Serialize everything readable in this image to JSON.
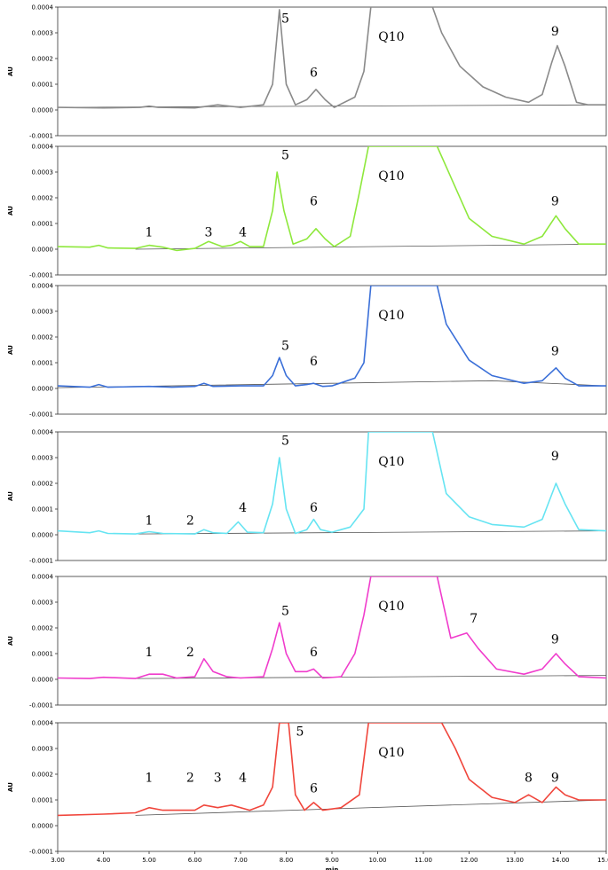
{
  "chart_data": {
    "type": "line",
    "xlabel": "min",
    "ylabel": "AU",
    "xlim": [
      3.0,
      15.0
    ],
    "ylim": [
      -0.0001,
      0.0004
    ],
    "x_ticks": [
      "3.00",
      "4.00",
      "5.00",
      "6.00",
      "7.00",
      "8.00",
      "9.00",
      "10.00",
      "11.00",
      "12.00",
      "13.00",
      "14.00",
      "15.00"
    ],
    "y_ticks": [
      "-0.0001",
      "0.0000",
      "0.0001",
      "0.0002",
      "0.0003",
      "0.0004"
    ],
    "panels": [
      {
        "color": "#8a8a8a",
        "q10_label": "Q10",
        "baseline": [
          [
            3.0,
            1e-05
          ],
          [
            15.0,
            2e-05
          ]
        ],
        "trace": [
          [
            3.0,
            1e-05
          ],
          [
            4.0,
            8e-06
          ],
          [
            4.8,
            1e-05
          ],
          [
            5.0,
            1.5e-05
          ],
          [
            5.2,
            1e-05
          ],
          [
            6.0,
            8e-06
          ],
          [
            6.5,
            2e-05
          ],
          [
            7.0,
            1e-05
          ],
          [
            7.5,
            2e-05
          ],
          [
            7.7,
            0.0001
          ],
          [
            7.85,
            0.00039
          ],
          [
            8.0,
            0.0001
          ],
          [
            8.2,
            2e-05
          ],
          [
            8.45,
            4e-05
          ],
          [
            8.65,
            8e-05
          ],
          [
            8.85,
            4e-05
          ],
          [
            9.05,
            1e-05
          ],
          [
            9.5,
            5e-05
          ],
          [
            9.7,
            0.00015
          ],
          [
            9.85,
            0.0004
          ],
          [
            11.2,
            0.0004
          ],
          [
            11.4,
            0.0003
          ],
          [
            11.8,
            0.00017
          ],
          [
            12.3,
            9e-05
          ],
          [
            12.8,
            5e-05
          ],
          [
            13.3,
            3e-05
          ],
          [
            13.6,
            6e-05
          ],
          [
            13.8,
            0.00018
          ],
          [
            13.93,
            0.00025
          ],
          [
            14.1,
            0.00017
          ],
          [
            14.35,
            3e-05
          ],
          [
            14.6,
            2e-05
          ],
          [
            15.0,
            2e-05
          ]
        ],
        "peaks": [
          {
            "label": "5",
            "x": 7.98,
            "y": 0.00034
          },
          {
            "label": "6",
            "x": 8.6,
            "y": 0.00013
          },
          {
            "label": "9",
            "x": 13.88,
            "y": 0.00029
          }
        ]
      },
      {
        "color": "#8ee83c",
        "q10_label": "Q10",
        "baseline": [
          [
            4.7,
            0.0
          ],
          [
            15.0,
            2e-05
          ]
        ],
        "trace": [
          [
            3.0,
            1e-05
          ],
          [
            3.7,
            8e-06
          ],
          [
            3.9,
            1.5e-05
          ],
          [
            4.1,
            5e-06
          ],
          [
            4.7,
            3e-06
          ],
          [
            5.0,
            1.5e-05
          ],
          [
            5.3,
            8e-06
          ],
          [
            5.6,
            -5e-06
          ],
          [
            6.0,
            3e-06
          ],
          [
            6.3,
            3e-05
          ],
          [
            6.6,
            1e-05
          ],
          [
            6.8,
            1.5e-05
          ],
          [
            7.0,
            3e-05
          ],
          [
            7.2,
            1e-05
          ],
          [
            7.5,
            1e-05
          ],
          [
            7.7,
            0.00015
          ],
          [
            7.8,
            0.0003
          ],
          [
            7.95,
            0.00015
          ],
          [
            8.15,
            2e-05
          ],
          [
            8.45,
            4e-05
          ],
          [
            8.65,
            8e-05
          ],
          [
            8.85,
            4e-05
          ],
          [
            9.05,
            1e-05
          ],
          [
            9.4,
            5e-05
          ],
          [
            9.6,
            0.00022
          ],
          [
            9.8,
            0.0004
          ],
          [
            11.3,
            0.0004
          ],
          [
            11.5,
            0.00032
          ],
          [
            12.0,
            0.00012
          ],
          [
            12.5,
            5e-05
          ],
          [
            13.2,
            2e-05
          ],
          [
            13.6,
            5e-05
          ],
          [
            13.9,
            0.00013
          ],
          [
            14.1,
            8e-05
          ],
          [
            14.4,
            2e-05
          ],
          [
            15.0,
            2e-05
          ]
        ],
        "peaks": [
          {
            "label": "1",
            "x": 5.0,
            "y": 5e-05
          },
          {
            "label": "3",
            "x": 6.3,
            "y": 5e-05
          },
          {
            "label": "4",
            "x": 7.05,
            "y": 5e-05
          },
          {
            "label": "5",
            "x": 7.98,
            "y": 0.00035
          },
          {
            "label": "6",
            "x": 8.6,
            "y": 0.00017
          },
          {
            "label": "9",
            "x": 13.88,
            "y": 0.00017
          }
        ]
      },
      {
        "color": "#3a6fd8",
        "q10_label": "Q10",
        "baseline": [
          [
            3.0,
            3e-06
          ],
          [
            12.5,
            3e-05
          ],
          [
            15.0,
            1e-05
          ]
        ],
        "trace": [
          [
            3.0,
            1e-05
          ],
          [
            3.7,
            5e-06
          ],
          [
            3.9,
            1.5e-05
          ],
          [
            4.1,
            5e-06
          ],
          [
            5.0,
            8e-06
          ],
          [
            5.5,
            5e-06
          ],
          [
            6.0,
            8e-06
          ],
          [
            6.2,
            2e-05
          ],
          [
            6.4,
            8e-06
          ],
          [
            7.0,
            1e-05
          ],
          [
            7.5,
            1e-05
          ],
          [
            7.7,
            5e-05
          ],
          [
            7.85,
            0.00012
          ],
          [
            8.0,
            5e-05
          ],
          [
            8.2,
            1e-05
          ],
          [
            8.45,
            1.5e-05
          ],
          [
            8.6,
            2e-05
          ],
          [
            8.8,
            8e-06
          ],
          [
            9.0,
            1e-05
          ],
          [
            9.5,
            4e-05
          ],
          [
            9.7,
            0.0001
          ],
          [
            9.85,
            0.0004
          ],
          [
            11.3,
            0.0004
          ],
          [
            11.5,
            0.00025
          ],
          [
            12.0,
            0.00011
          ],
          [
            12.5,
            5e-05
          ],
          [
            13.2,
            2e-05
          ],
          [
            13.6,
            3e-05
          ],
          [
            13.9,
            8e-05
          ],
          [
            14.1,
            4e-05
          ],
          [
            14.4,
            1e-05
          ],
          [
            15.0,
            1e-05
          ]
        ],
        "peaks": [
          {
            "label": "5",
            "x": 7.98,
            "y": 0.00015
          },
          {
            "label": "6",
            "x": 8.6,
            "y": 9e-05
          },
          {
            "label": "9",
            "x": 13.88,
            "y": 0.00013
          }
        ]
      },
      {
        "color": "#66e4f2",
        "q10_label": "Q10",
        "baseline": [
          [
            4.7,
            3e-06
          ],
          [
            15.0,
            1.5e-05
          ]
        ],
        "trace": [
          [
            3.0,
            1.5e-05
          ],
          [
            3.7,
            8e-06
          ],
          [
            3.9,
            1.5e-05
          ],
          [
            4.1,
            5e-06
          ],
          [
            4.7,
            3e-06
          ],
          [
            5.0,
            1.2e-05
          ],
          [
            5.3,
            5e-06
          ],
          [
            6.0,
            3e-06
          ],
          [
            6.2,
            2e-05
          ],
          [
            6.4,
            8e-06
          ],
          [
            6.7,
            5e-06
          ],
          [
            6.95,
            5e-05
          ],
          [
            7.15,
            1e-05
          ],
          [
            7.5,
            8e-06
          ],
          [
            7.7,
            0.00012
          ],
          [
            7.85,
            0.0003
          ],
          [
            8.0,
            0.0001
          ],
          [
            8.2,
            5e-06
          ],
          [
            8.45,
            2e-05
          ],
          [
            8.6,
            6e-05
          ],
          [
            8.75,
            2e-05
          ],
          [
            9.0,
            1e-05
          ],
          [
            9.4,
            3e-05
          ],
          [
            9.7,
            0.0001
          ],
          [
            9.8,
            0.0004
          ],
          [
            11.2,
            0.0004
          ],
          [
            11.5,
            0.00016
          ],
          [
            12.0,
            7e-05
          ],
          [
            12.5,
            4e-05
          ],
          [
            13.2,
            3e-05
          ],
          [
            13.6,
            6e-05
          ],
          [
            13.9,
            0.0002
          ],
          [
            14.1,
            0.00012
          ],
          [
            14.4,
            2e-05
          ],
          [
            15.0,
            1.5e-05
          ]
        ],
        "peaks": [
          {
            "label": "1",
            "x": 5.0,
            "y": 4e-05
          },
          {
            "label": "2",
            "x": 5.9,
            "y": 4e-05
          },
          {
            "label": "4",
            "x": 7.05,
            "y": 9e-05
          },
          {
            "label": "5",
            "x": 7.98,
            "y": 0.00035
          },
          {
            "label": "6",
            "x": 8.6,
            "y": 9e-05
          },
          {
            "label": "9",
            "x": 13.88,
            "y": 0.00029
          }
        ]
      },
      {
        "color": "#f03ccc",
        "q10_label": "Q10",
        "baseline": [
          [
            4.7,
            3e-06
          ],
          [
            15.0,
            1.5e-05
          ]
        ],
        "trace": [
          [
            3.0,
            5e-06
          ],
          [
            3.7,
            3e-06
          ],
          [
            4.0,
            8e-06
          ],
          [
            4.7,
            3e-06
          ],
          [
            5.0,
            2e-05
          ],
          [
            5.3,
            2e-05
          ],
          [
            5.6,
            5e-06
          ],
          [
            6.0,
            1e-05
          ],
          [
            6.2,
            8e-05
          ],
          [
            6.4,
            3e-05
          ],
          [
            6.7,
            1e-05
          ],
          [
            7.0,
            5e-06
          ],
          [
            7.5,
            1e-05
          ],
          [
            7.7,
            0.00012
          ],
          [
            7.85,
            0.00022
          ],
          [
            8.0,
            0.0001
          ],
          [
            8.2,
            3e-05
          ],
          [
            8.45,
            3e-05
          ],
          [
            8.6,
            4e-05
          ],
          [
            8.8,
            5e-06
          ],
          [
            9.2,
            1e-05
          ],
          [
            9.5,
            0.0001
          ],
          [
            9.7,
            0.00025
          ],
          [
            9.85,
            0.0004
          ],
          [
            11.3,
            0.0004
          ],
          [
            11.6,
            0.00016
          ],
          [
            11.95,
            0.00018
          ],
          [
            12.2,
            0.00012
          ],
          [
            12.6,
            4e-05
          ],
          [
            13.2,
            2e-05
          ],
          [
            13.6,
            4e-05
          ],
          [
            13.9,
            0.0001
          ],
          [
            14.1,
            6e-05
          ],
          [
            14.4,
            1e-05
          ],
          [
            15.0,
            5e-06
          ]
        ],
        "peaks": [
          {
            "label": "1",
            "x": 5.0,
            "y": 9e-05
          },
          {
            "label": "2",
            "x": 5.9,
            "y": 9e-05
          },
          {
            "label": "5",
            "x": 7.98,
            "y": 0.00025
          },
          {
            "label": "6",
            "x": 8.6,
            "y": 9e-05
          },
          {
            "label": "7",
            "x": 12.1,
            "y": 0.00022
          },
          {
            "label": "9",
            "x": 13.88,
            "y": 0.00014
          }
        ]
      },
      {
        "color": "#f0463c",
        "q10_label": "Q10",
        "baseline": [
          [
            4.7,
            4e-05
          ],
          [
            15.0,
            0.0001
          ]
        ],
        "trace": [
          [
            3.0,
            4e-05
          ],
          [
            4.0,
            4.5e-05
          ],
          [
            4.7,
            5e-05
          ],
          [
            5.0,
            7e-05
          ],
          [
            5.3,
            6e-05
          ],
          [
            6.0,
            6e-05
          ],
          [
            6.2,
            8e-05
          ],
          [
            6.5,
            7e-05
          ],
          [
            6.8,
            8e-05
          ],
          [
            7.2,
            6e-05
          ],
          [
            7.5,
            8e-05
          ],
          [
            7.7,
            0.00015
          ],
          [
            7.85,
            0.0004
          ],
          [
            8.05,
            0.0004
          ],
          [
            8.2,
            0.00012
          ],
          [
            8.4,
            6e-05
          ],
          [
            8.6,
            9e-05
          ],
          [
            8.8,
            6e-05
          ],
          [
            9.2,
            7e-05
          ],
          [
            9.6,
            0.00012
          ],
          [
            9.8,
            0.0004
          ],
          [
            11.4,
            0.0004
          ],
          [
            11.7,
            0.0003
          ],
          [
            12.0,
            0.00018
          ],
          [
            12.5,
            0.00011
          ],
          [
            13.0,
            9e-05
          ],
          [
            13.3,
            0.00012
          ],
          [
            13.6,
            9e-05
          ],
          [
            13.9,
            0.00015
          ],
          [
            14.1,
            0.00012
          ],
          [
            14.4,
            0.0001
          ],
          [
            15.0,
            0.0001
          ]
        ],
        "peaks": [
          {
            "label": "1",
            "x": 5.0,
            "y": 0.00017
          },
          {
            "label": "2",
            "x": 5.9,
            "y": 0.00017
          },
          {
            "label": "3",
            "x": 6.5,
            "y": 0.00017
          },
          {
            "label": "4",
            "x": 7.05,
            "y": 0.00017
          },
          {
            "label": "5",
            "x": 8.3,
            "y": 0.00035
          },
          {
            "label": "6",
            "x": 8.6,
            "y": 0.00013
          },
          {
            "label": "8",
            "x": 13.3,
            "y": 0.00017
          },
          {
            "label": "9",
            "x": 13.88,
            "y": 0.00017
          }
        ]
      }
    ]
  }
}
